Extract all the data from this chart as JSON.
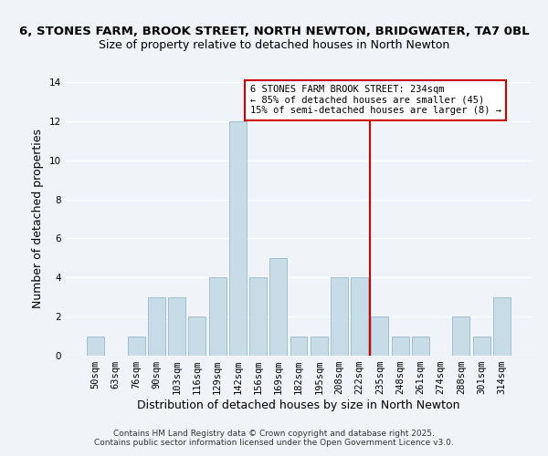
{
  "title": "6, STONES FARM, BROOK STREET, NORTH NEWTON, BRIDGWATER, TA7 0BL",
  "subtitle": "Size of property relative to detached houses in North Newton",
  "xlabel": "Distribution of detached houses by size in North Newton",
  "ylabel": "Number of detached properties",
  "bar_color": "#c8dce8",
  "bar_edge_color": "#a0bfd0",
  "categories": [
    "50sqm",
    "63sqm",
    "76sqm",
    "90sqm",
    "103sqm",
    "116sqm",
    "129sqm",
    "142sqm",
    "156sqm",
    "169sqm",
    "182sqm",
    "195sqm",
    "208sqm",
    "222sqm",
    "235sqm",
    "248sqm",
    "261sqm",
    "274sqm",
    "288sqm",
    "301sqm",
    "314sqm"
  ],
  "values": [
    1,
    0,
    1,
    3,
    3,
    2,
    4,
    12,
    4,
    5,
    1,
    1,
    4,
    4,
    2,
    1,
    1,
    0,
    2,
    1,
    3
  ],
  "ylim": [
    0,
    14
  ],
  "yticks": [
    0,
    2,
    4,
    6,
    8,
    10,
    12,
    14
  ],
  "vline_idx": 14,
  "vline_color": "#cc0000",
  "annotation_line1": "6 STONES FARM BROOK STREET: 234sqm",
  "annotation_line2": "← 85% of detached houses are smaller (45)",
  "annotation_line3": "15% of semi-detached houses are larger (8) →",
  "footer1": "Contains HM Land Registry data © Crown copyright and database right 2025.",
  "footer2": "Contains public sector information licensed under the Open Government Licence v3.0.",
  "background_color": "#f0f4f8",
  "grid_color": "#ffffff",
  "title_fontsize": 9.5,
  "subtitle_fontsize": 9,
  "axis_label_fontsize": 9,
  "tick_fontsize": 7.5,
  "annotation_fontsize": 7.5,
  "footer_fontsize": 6.5
}
